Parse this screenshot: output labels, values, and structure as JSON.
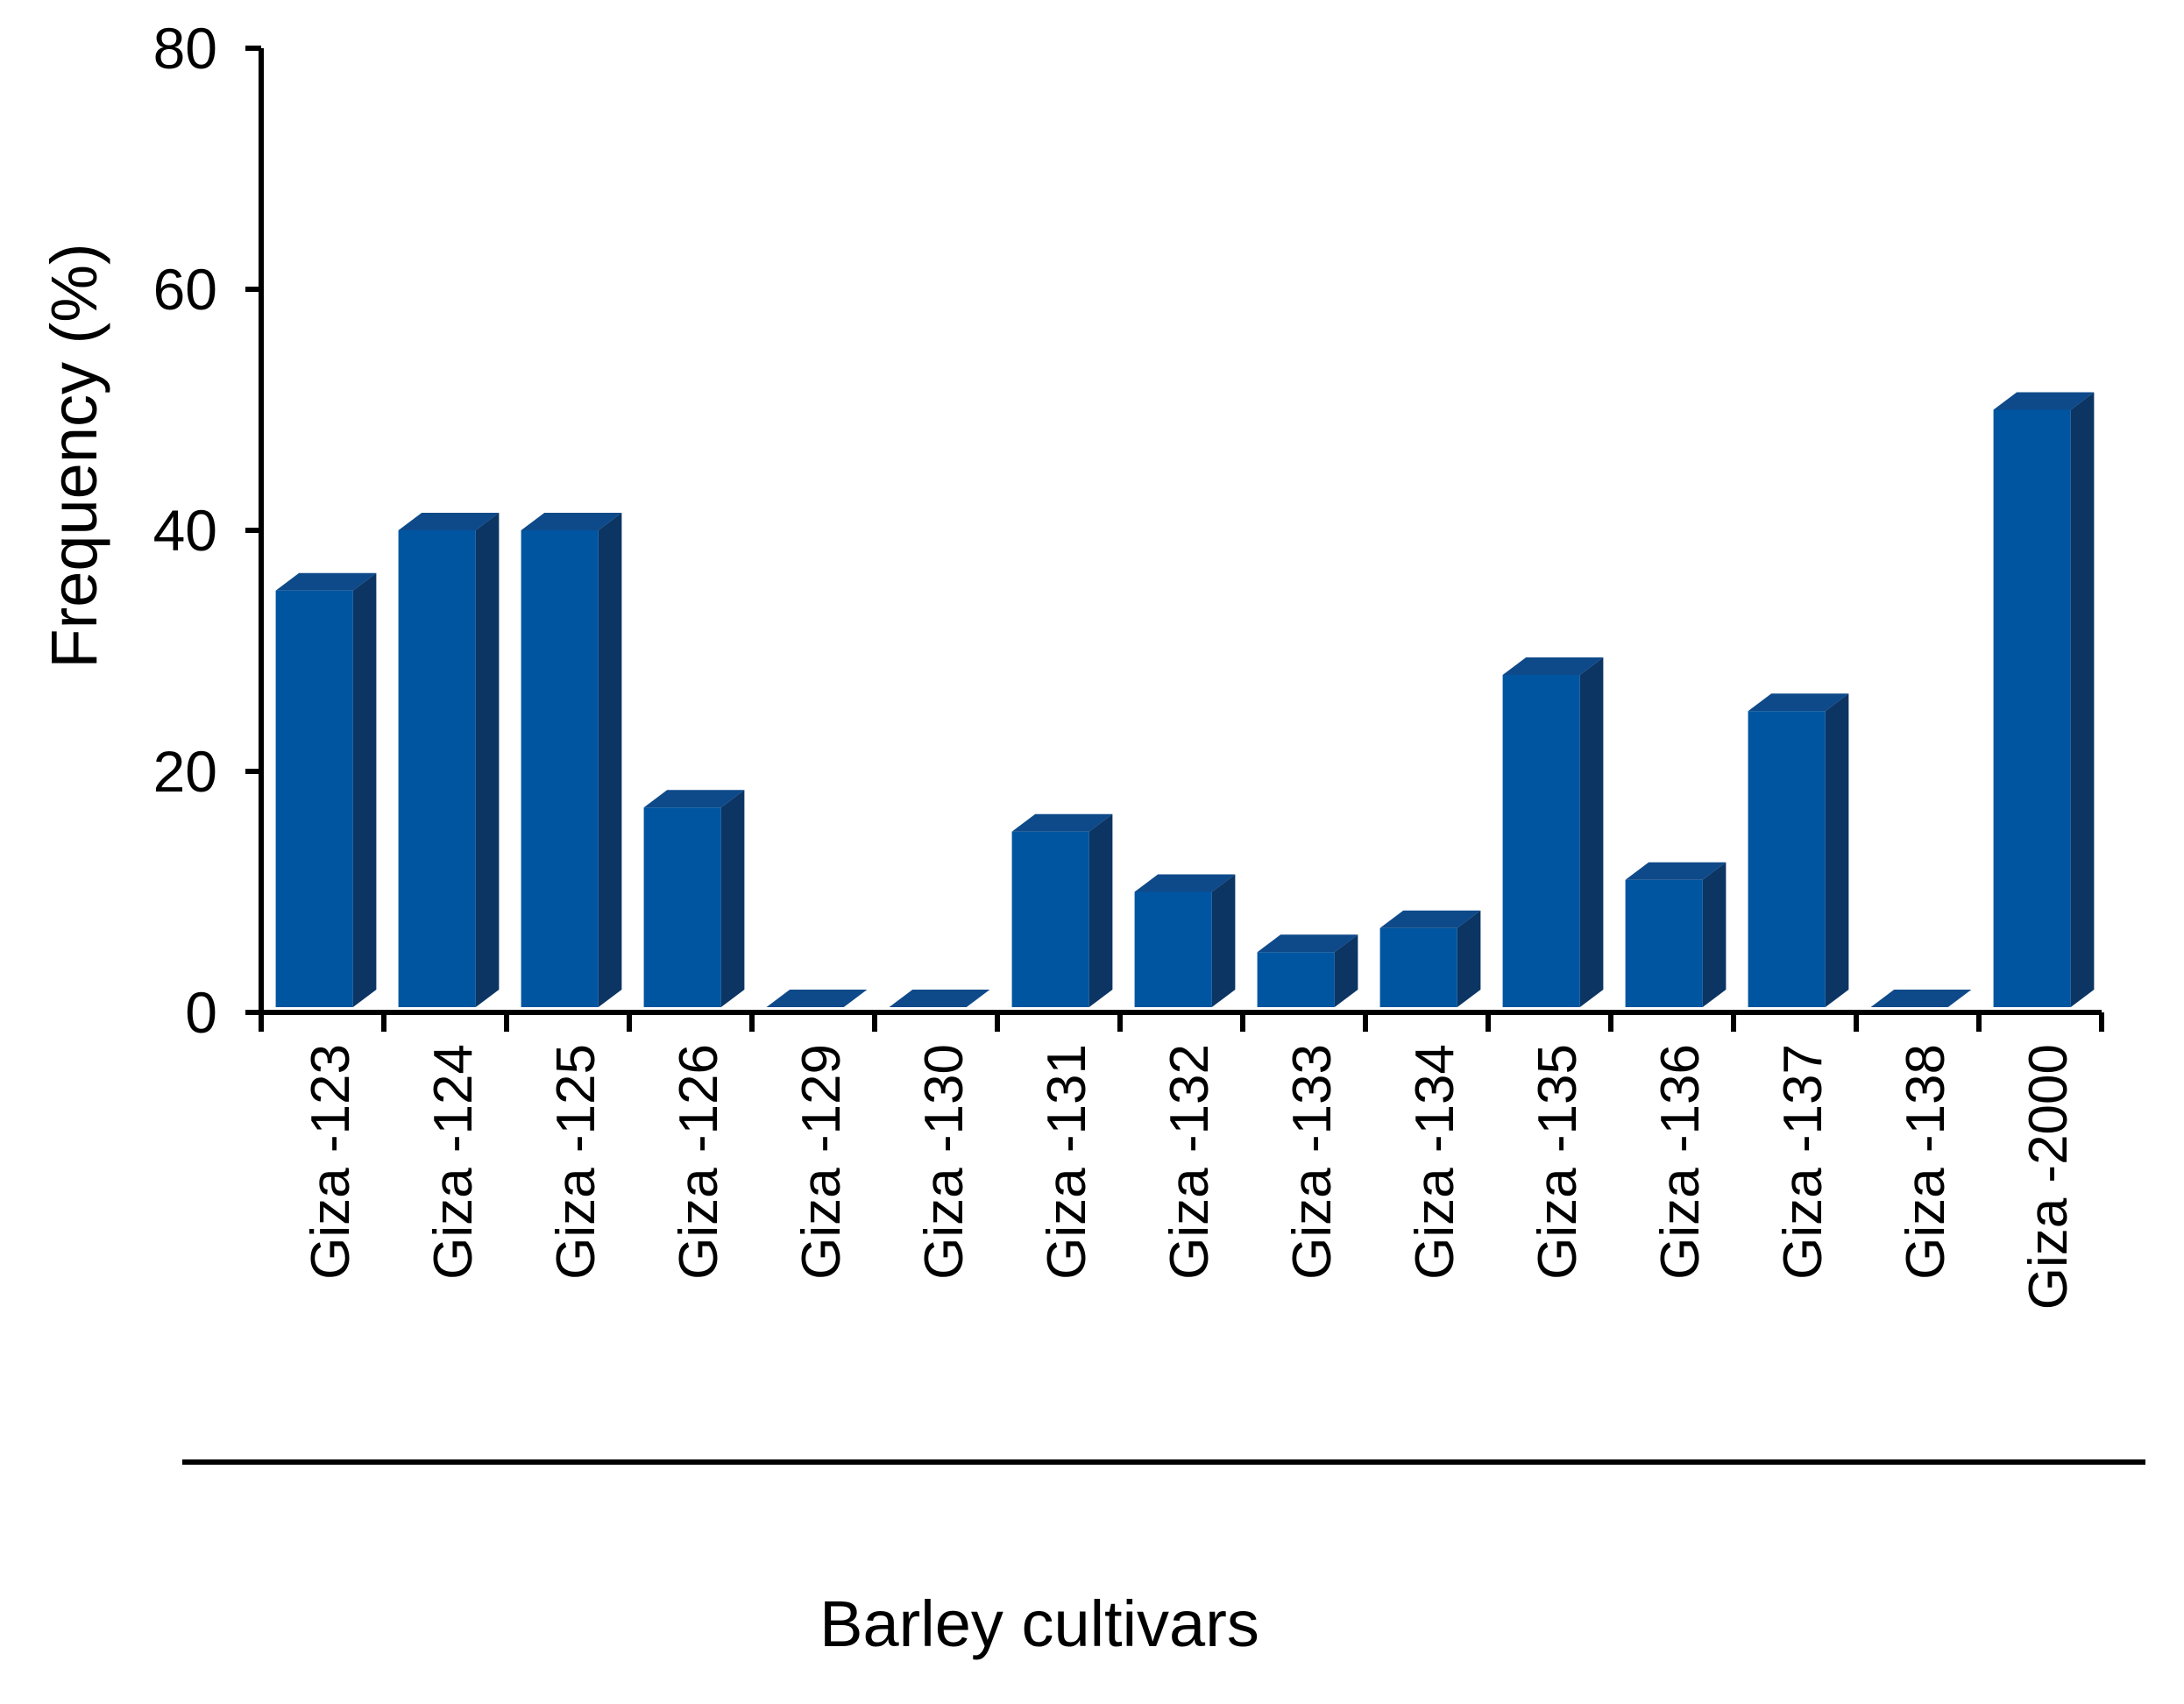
{
  "chart_data": {
    "type": "bar",
    "style": "3d-column",
    "xlabel": "Barley cultivars",
    "ylabel": "Frequency (%)",
    "ylim": [
      0,
      80
    ],
    "yticks": [
      0,
      20,
      40,
      60,
      80
    ],
    "grid": false,
    "legend": "none",
    "categories": [
      "Giza -123",
      "Giza -124",
      "Giza -125",
      "Giza -126",
      "Giza -129",
      "Giza -130",
      "Giza -131",
      "Giza -132",
      "Giza -133",
      "Giza -134",
      "Giza -135",
      "Giza -136",
      "Giza -137",
      "Giza -138",
      "Giza -2000"
    ],
    "values": [
      35,
      40,
      40,
      17,
      0,
      0,
      15,
      10,
      5,
      7,
      28,
      11,
      25,
      0,
      50
    ],
    "colors": {
      "front": "#0055a0",
      "side": "#0c3563",
      "top": "#0e4a8a"
    }
  }
}
